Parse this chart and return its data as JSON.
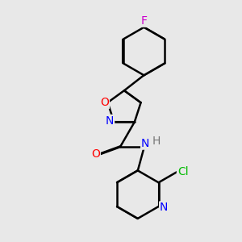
{
  "background_color": "#e8e8e8",
  "bond_color": "#000000",
  "bond_width": 1.8,
  "dbo": 0.012,
  "atom_colors": {
    "O": "#ff0000",
    "N": "#0000ff",
    "F": "#cc00cc",
    "Cl": "#00bb00",
    "H": "#777777",
    "C": "#000000"
  },
  "font_size": 10,
  "fig_width": 3.0,
  "fig_height": 3.0,
  "dpi": 100
}
